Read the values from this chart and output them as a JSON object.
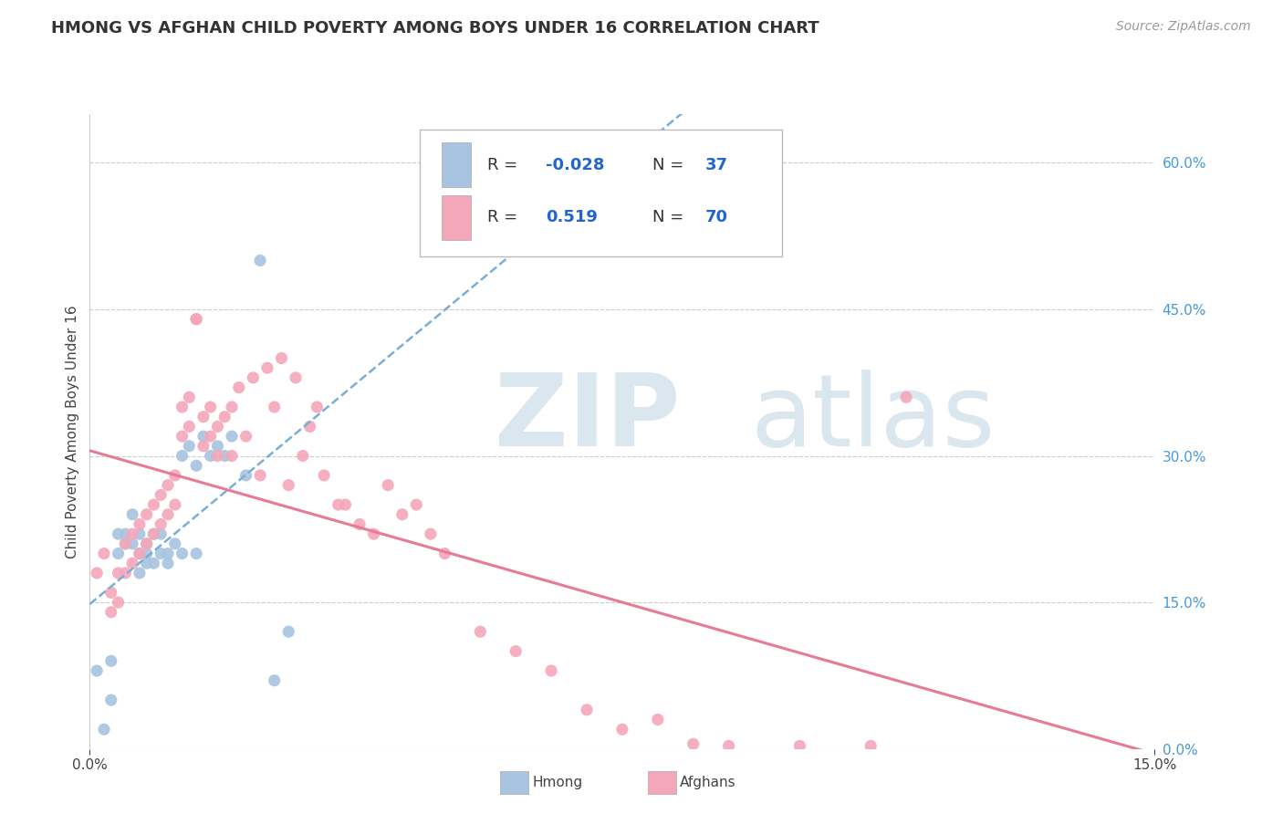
{
  "title": "HMONG VS AFGHAN CHILD POVERTY AMONG BOYS UNDER 16 CORRELATION CHART",
  "source": "Source: ZipAtlas.com",
  "ylabel_label": "Child Poverty Among Boys Under 16",
  "right_yticks": [
    0.0,
    0.15,
    0.3,
    0.45,
    0.6
  ],
  "right_yticklabels": [
    "0.0%",
    "15.0%",
    "30.0%",
    "45.0%",
    "60.0%"
  ],
  "hmong_R": -0.028,
  "hmong_N": 37,
  "afghan_R": 0.519,
  "afghan_N": 70,
  "hmong_color": "#a8c4e0",
  "afghan_color": "#f4a7b9",
  "hmong_line_color": "#7aaed6",
  "afghan_line_color": "#e87a96",
  "background_color": "#ffffff",
  "watermark_color": "#ccdde8",
  "xlim": [
    0.0,
    0.15
  ],
  "ylim": [
    0.0,
    0.65
  ],
  "hmong_x": [
    0.002,
    0.003,
    0.004,
    0.004,
    0.005,
    0.005,
    0.006,
    0.006,
    0.007,
    0.007,
    0.007,
    0.008,
    0.008,
    0.008,
    0.009,
    0.009,
    0.01,
    0.01,
    0.011,
    0.011,
    0.012,
    0.013,
    0.013,
    0.014,
    0.015,
    0.015,
    0.016,
    0.017,
    0.018,
    0.019,
    0.02,
    0.022,
    0.024,
    0.026,
    0.028,
    0.001,
    0.003
  ],
  "hmong_y": [
    0.02,
    0.05,
    0.22,
    0.2,
    0.22,
    0.21,
    0.24,
    0.21,
    0.2,
    0.18,
    0.22,
    0.2,
    0.19,
    0.21,
    0.22,
    0.19,
    0.2,
    0.22,
    0.2,
    0.19,
    0.21,
    0.2,
    0.3,
    0.31,
    0.2,
    0.29,
    0.32,
    0.3,
    0.31,
    0.3,
    0.32,
    0.28,
    0.5,
    0.07,
    0.12,
    0.08,
    0.09
  ],
  "afghan_x": [
    0.001,
    0.002,
    0.003,
    0.003,
    0.004,
    0.004,
    0.005,
    0.005,
    0.006,
    0.006,
    0.007,
    0.007,
    0.008,
    0.008,
    0.009,
    0.009,
    0.01,
    0.01,
    0.011,
    0.011,
    0.012,
    0.012,
    0.013,
    0.013,
    0.014,
    0.014,
    0.015,
    0.015,
    0.016,
    0.016,
    0.017,
    0.017,
    0.018,
    0.018,
    0.019,
    0.02,
    0.02,
    0.021,
    0.022,
    0.023,
    0.024,
    0.025,
    0.026,
    0.027,
    0.028,
    0.029,
    0.03,
    0.031,
    0.032,
    0.033,
    0.035,
    0.036,
    0.038,
    0.04,
    0.042,
    0.044,
    0.046,
    0.048,
    0.05,
    0.055,
    0.06,
    0.065,
    0.07,
    0.075,
    0.08,
    0.085,
    0.09,
    0.1,
    0.11,
    0.115
  ],
  "afghan_y": [
    0.18,
    0.2,
    0.16,
    0.14,
    0.18,
    0.15,
    0.21,
    0.18,
    0.22,
    0.19,
    0.23,
    0.2,
    0.24,
    0.21,
    0.25,
    0.22,
    0.26,
    0.23,
    0.27,
    0.24,
    0.28,
    0.25,
    0.35,
    0.32,
    0.36,
    0.33,
    0.44,
    0.44,
    0.34,
    0.31,
    0.35,
    0.32,
    0.33,
    0.3,
    0.34,
    0.35,
    0.3,
    0.37,
    0.32,
    0.38,
    0.28,
    0.39,
    0.35,
    0.4,
    0.27,
    0.38,
    0.3,
    0.33,
    0.35,
    0.28,
    0.25,
    0.25,
    0.23,
    0.22,
    0.27,
    0.24,
    0.25,
    0.22,
    0.2,
    0.12,
    0.1,
    0.08,
    0.04,
    0.02,
    0.03,
    0.005,
    0.003,
    0.003,
    0.003,
    0.36
  ]
}
